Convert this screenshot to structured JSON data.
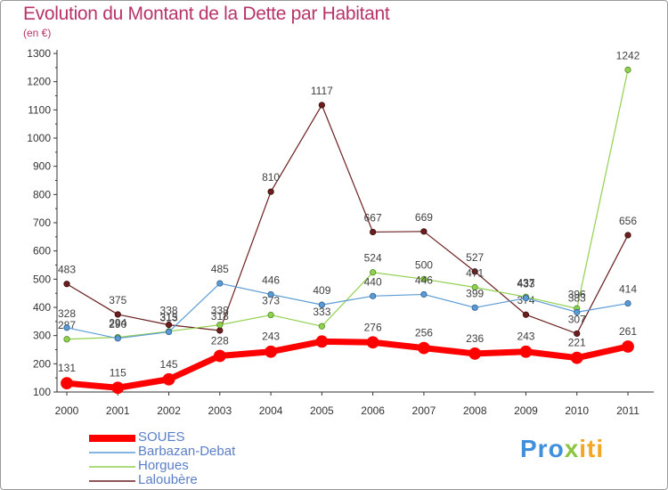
{
  "header": {
    "title": "Evolution du Montant de la Dette par Habitant",
    "subtitle": "(en €)"
  },
  "brand": {
    "part1": "Pro",
    "part2": "x",
    "part3": "iti"
  },
  "colors": {
    "title": "#b8336a",
    "soues": "#ff0000",
    "barbazan": "#5b9bd5",
    "horgues": "#92d050",
    "laloubere": "#6b1f1f",
    "legend_text": "#5b7fc7",
    "axis": "#333333",
    "grid": "#dddddd"
  },
  "chart_data": {
    "type": "line",
    "title": "Evolution du Montant de la Dette par Habitant",
    "subtitle": "(en €)",
    "xlabel": "",
    "ylabel": "",
    "x": [
      "2000",
      "2001",
      "2002",
      "2003",
      "2004",
      "2005",
      "2006",
      "2007",
      "2008",
      "2009",
      "2010",
      "2011"
    ],
    "ylim": [
      100,
      1300
    ],
    "yticks": [
      100,
      200,
      300,
      400,
      500,
      600,
      700,
      800,
      900,
      1000,
      1100,
      1200,
      1300
    ],
    "grid": false,
    "legend_position": "bottom-left",
    "series": [
      {
        "name": "SOUES",
        "values": [
          131,
          115,
          145,
          228,
          243,
          279,
          276,
          256,
          236,
          243,
          221,
          261
        ],
        "labels": [
          "131",
          "115",
          "145",
          "228",
          "243",
          "",
          "276",
          "256",
          "236",
          "243",
          "221",
          "261"
        ]
      },
      {
        "name": "Barbazan-Debat",
        "values": [
          328,
          290,
          313,
          485,
          446,
          409,
          440,
          446,
          399,
          433,
          383,
          414
        ],
        "labels": [
          "328",
          "290",
          "313",
          "485",
          "446",
          "409",
          "440",
          "446",
          "399",
          "433",
          "383",
          "414"
        ]
      },
      {
        "name": "Horgues",
        "values": [
          287,
          294,
          315,
          338,
          373,
          333,
          524,
          500,
          471,
          437,
          396,
          1242
        ],
        "labels": [
          "287",
          "294",
          "315",
          "338",
          "373",
          "333",
          "524",
          "500",
          "471",
          "437",
          "396",
          "1242"
        ]
      },
      {
        "name": "Laloubère",
        "values": [
          483,
          375,
          338,
          318,
          810,
          1117,
          667,
          669,
          527,
          374,
          307,
          656
        ],
        "labels": [
          "483",
          "375",
          "338",
          "318",
          "810",
          "1117",
          "667",
          "669",
          "527",
          "374",
          "307",
          "656"
        ]
      }
    ]
  }
}
